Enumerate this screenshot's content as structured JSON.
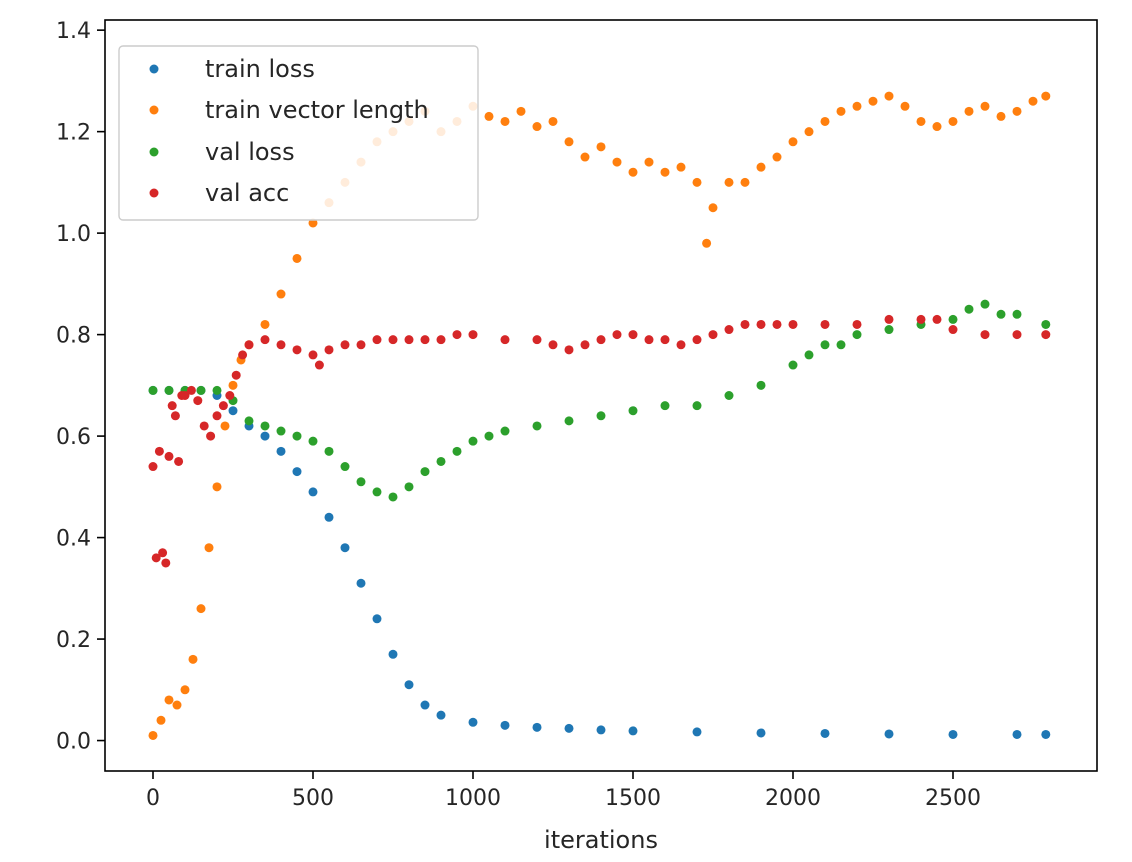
{
  "chart_data": {
    "type": "scatter",
    "title": "",
    "xlabel": "iterations",
    "ylabel": "",
    "xlim": [
      -150,
      2950
    ],
    "ylim": [
      -0.06,
      1.42
    ],
    "xticks": [
      0,
      500,
      1000,
      1500,
      2000,
      2500
    ],
    "yticks": [
      0.0,
      0.2,
      0.4,
      0.6,
      0.8,
      1.0,
      1.2,
      1.4
    ],
    "xtick_labels": [
      "0",
      "500",
      "1000",
      "1500",
      "2000",
      "2500"
    ],
    "ytick_labels": [
      "0.0",
      "0.2",
      "0.4",
      "0.6",
      "0.8",
      "1.0",
      "1.2",
      "1.4"
    ],
    "grid": false,
    "legend_position": "top-left",
    "series": [
      {
        "name": "train loss",
        "color": "#1f77b4",
        "x": [
          0,
          50,
          100,
          150,
          200,
          250,
          300,
          350,
          400,
          450,
          500,
          550,
          600,
          650,
          700,
          750,
          800,
          850,
          900,
          1000,
          1100,
          1200,
          1300,
          1400,
          1500,
          1700,
          1900,
          2100,
          2300,
          2500,
          2700,
          2790
        ],
        "y": [
          0.69,
          0.69,
          0.69,
          0.69,
          0.68,
          0.65,
          0.62,
          0.6,
          0.57,
          0.53,
          0.49,
          0.44,
          0.38,
          0.31,
          0.24,
          0.17,
          0.11,
          0.07,
          0.05,
          0.036,
          0.03,
          0.026,
          0.024,
          0.021,
          0.019,
          0.017,
          0.015,
          0.014,
          0.013,
          0.012,
          0.012,
          0.012
        ]
      },
      {
        "name": "train vector length",
        "color": "#ff7f0e",
        "x": [
          0,
          25,
          50,
          75,
          100,
          125,
          150,
          175,
          200,
          225,
          250,
          275,
          300,
          350,
          400,
          450,
          500,
          550,
          600,
          650,
          700,
          750,
          800,
          850,
          900,
          950,
          1000,
          1050,
          1100,
          1150,
          1200,
          1250,
          1300,
          1350,
          1400,
          1450,
          1500,
          1550,
          1600,
          1650,
          1700,
          1730,
          1750,
          1800,
          1850,
          1900,
          1950,
          2000,
          2050,
          2100,
          2150,
          2200,
          2250,
          2300,
          2350,
          2400,
          2450,
          2500,
          2550,
          2600,
          2650,
          2700,
          2750,
          2790
        ],
        "y": [
          0.01,
          0.04,
          0.08,
          0.07,
          0.1,
          0.16,
          0.26,
          0.38,
          0.5,
          0.62,
          0.7,
          0.75,
          0.78,
          0.82,
          0.88,
          0.95,
          1.02,
          1.06,
          1.1,
          1.14,
          1.18,
          1.2,
          1.22,
          1.24,
          1.2,
          1.22,
          1.25,
          1.23,
          1.22,
          1.24,
          1.21,
          1.22,
          1.18,
          1.15,
          1.17,
          1.14,
          1.12,
          1.14,
          1.12,
          1.13,
          1.1,
          0.98,
          1.05,
          1.1,
          1.1,
          1.13,
          1.15,
          1.18,
          1.2,
          1.22,
          1.24,
          1.25,
          1.26,
          1.27,
          1.25,
          1.22,
          1.21,
          1.22,
          1.24,
          1.25,
          1.23,
          1.24,
          1.26,
          1.27
        ]
      },
      {
        "name": "val loss",
        "color": "#2ca02c",
        "x": [
          0,
          50,
          100,
          150,
          200,
          250,
          300,
          350,
          400,
          450,
          500,
          550,
          600,
          650,
          700,
          750,
          800,
          850,
          900,
          950,
          1000,
          1050,
          1100,
          1200,
          1300,
          1400,
          1500,
          1600,
          1700,
          1800,
          1900,
          2000,
          2050,
          2100,
          2150,
          2200,
          2300,
          2400,
          2500,
          2550,
          2600,
          2650,
          2700,
          2790
        ],
        "y": [
          0.69,
          0.69,
          0.69,
          0.69,
          0.69,
          0.67,
          0.63,
          0.62,
          0.61,
          0.6,
          0.59,
          0.57,
          0.54,
          0.51,
          0.49,
          0.48,
          0.5,
          0.53,
          0.55,
          0.57,
          0.59,
          0.6,
          0.61,
          0.62,
          0.63,
          0.64,
          0.65,
          0.66,
          0.66,
          0.68,
          0.7,
          0.74,
          0.76,
          0.78,
          0.78,
          0.8,
          0.81,
          0.82,
          0.83,
          0.85,
          0.86,
          0.84,
          0.84,
          0.82
        ]
      },
      {
        "name": "val acc",
        "color": "#d62728",
        "x": [
          0,
          10,
          20,
          30,
          40,
          50,
          60,
          70,
          80,
          90,
          100,
          120,
          140,
          160,
          180,
          200,
          220,
          240,
          260,
          280,
          300,
          350,
          400,
          450,
          500,
          520,
          550,
          600,
          650,
          700,
          750,
          800,
          850,
          900,
          950,
          1000,
          1100,
          1200,
          1250,
          1300,
          1350,
          1400,
          1450,
          1500,
          1550,
          1600,
          1650,
          1700,
          1750,
          1800,
          1850,
          1900,
          1950,
          2000,
          2100,
          2200,
          2300,
          2400,
          2450,
          2500,
          2600,
          2700,
          2790
        ],
        "y": [
          0.54,
          0.36,
          0.57,
          0.37,
          0.35,
          0.56,
          0.66,
          0.64,
          0.55,
          0.68,
          0.68,
          0.69,
          0.67,
          0.62,
          0.6,
          0.64,
          0.66,
          0.68,
          0.72,
          0.76,
          0.78,
          0.79,
          0.78,
          0.77,
          0.76,
          0.74,
          0.77,
          0.78,
          0.78,
          0.79,
          0.79,
          0.79,
          0.79,
          0.79,
          0.8,
          0.8,
          0.79,
          0.79,
          0.78,
          0.77,
          0.78,
          0.79,
          0.8,
          0.8,
          0.79,
          0.79,
          0.78,
          0.79,
          0.8,
          0.81,
          0.82,
          0.82,
          0.82,
          0.82,
          0.82,
          0.82,
          0.83,
          0.83,
          0.83,
          0.81,
          0.8,
          0.8,
          0.8
        ]
      }
    ]
  }
}
